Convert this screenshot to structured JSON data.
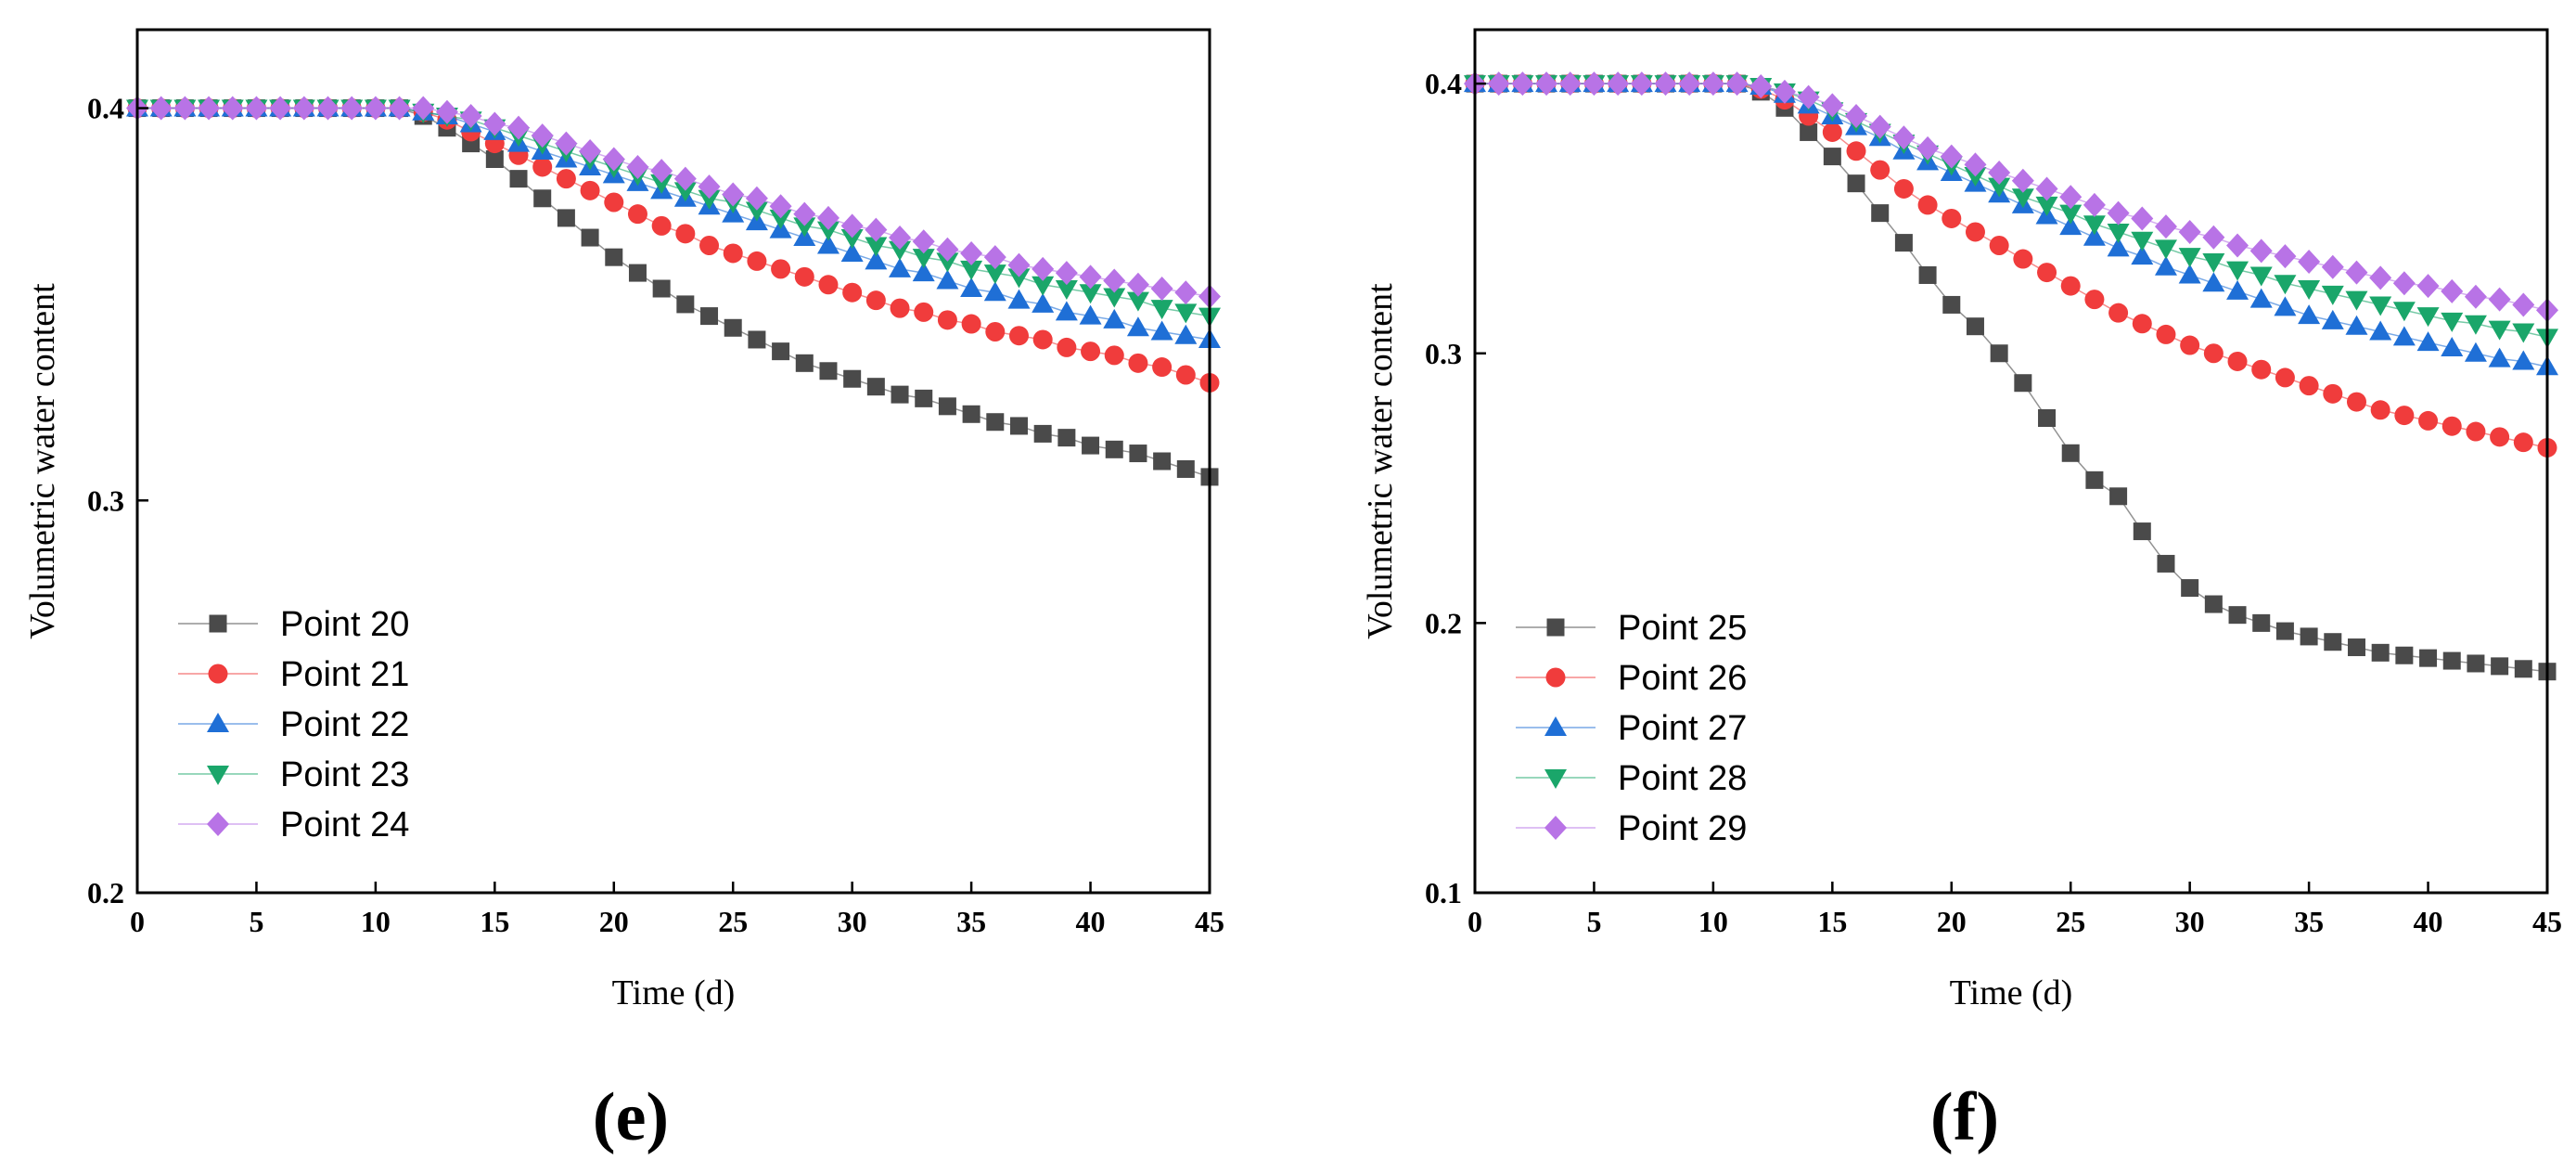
{
  "chart_data": [
    {
      "type": "line",
      "panel_label": "(e)",
      "xlabel": "Time (d)",
      "ylabel": "Volumetric water content",
      "xlim": [
        0,
        45
      ],
      "ylim": [
        0.2,
        0.42
      ],
      "xticks": [
        0,
        5,
        10,
        15,
        20,
        25,
        30,
        35,
        40,
        45
      ],
      "yticks": [
        0.2,
        0.3,
        0.4
      ],
      "ytick_labels": [
        "0.2",
        "0.3",
        "0.4"
      ],
      "legend_position": "bottom-left",
      "x": [
        0,
        1,
        2,
        3,
        4,
        5,
        6,
        7,
        8,
        9,
        10,
        11,
        12,
        13,
        14,
        15,
        16,
        17,
        18,
        19,
        20,
        21,
        22,
        23,
        24,
        25,
        26,
        27,
        28,
        29,
        30,
        31,
        32,
        33,
        34,
        35,
        36,
        37,
        38,
        39,
        40,
        41,
        42,
        43,
        44,
        45
      ],
      "series": [
        {
          "name": "Point 20",
          "color": "#4a4a4a",
          "marker": "square",
          "values": [
            0.4,
            0.4,
            0.4,
            0.4,
            0.4,
            0.4,
            0.4,
            0.4,
            0.4,
            0.4,
            0.4,
            0.4,
            0.398,
            0.395,
            0.391,
            0.387,
            0.382,
            0.377,
            0.372,
            0.367,
            0.362,
            0.358,
            0.354,
            0.35,
            0.347,
            0.344,
            0.341,
            0.338,
            0.335,
            0.333,
            0.331,
            0.329,
            0.327,
            0.326,
            0.324,
            0.322,
            0.32,
            0.319,
            0.317,
            0.316,
            0.314,
            0.313,
            0.312,
            0.31,
            0.308,
            0.306
          ]
        },
        {
          "name": "Point 21",
          "color": "#f03c3c",
          "marker": "circle",
          "values": [
            0.4,
            0.4,
            0.4,
            0.4,
            0.4,
            0.4,
            0.4,
            0.4,
            0.4,
            0.4,
            0.4,
            0.4,
            0.399,
            0.397,
            0.394,
            0.391,
            0.388,
            0.385,
            0.382,
            0.379,
            0.376,
            0.373,
            0.37,
            0.368,
            0.365,
            0.363,
            0.361,
            0.359,
            0.357,
            0.355,
            0.353,
            0.351,
            0.349,
            0.348,
            0.346,
            0.345,
            0.343,
            0.342,
            0.341,
            0.339,
            0.338,
            0.337,
            0.335,
            0.334,
            0.332,
            0.33
          ]
        },
        {
          "name": "Point 22",
          "color": "#1f6fd6",
          "marker": "triangle-up",
          "values": [
            0.4,
            0.4,
            0.4,
            0.4,
            0.4,
            0.4,
            0.4,
            0.4,
            0.4,
            0.4,
            0.4,
            0.4,
            0.399,
            0.398,
            0.396,
            0.394,
            0.391,
            0.389,
            0.387,
            0.385,
            0.383,
            0.381,
            0.379,
            0.377,
            0.375,
            0.373,
            0.371,
            0.369,
            0.367,
            0.365,
            0.363,
            0.361,
            0.359,
            0.358,
            0.356,
            0.354,
            0.353,
            0.351,
            0.35,
            0.348,
            0.347,
            0.346,
            0.344,
            0.343,
            0.342,
            0.341
          ]
        },
        {
          "name": "Point 23",
          "color": "#1aa66a",
          "marker": "triangle-down",
          "values": [
            0.4,
            0.4,
            0.4,
            0.4,
            0.4,
            0.4,
            0.4,
            0.4,
            0.4,
            0.4,
            0.4,
            0.4,
            0.399,
            0.398,
            0.397,
            0.395,
            0.393,
            0.391,
            0.389,
            0.387,
            0.385,
            0.383,
            0.381,
            0.379,
            0.377,
            0.376,
            0.374,
            0.372,
            0.37,
            0.369,
            0.367,
            0.365,
            0.364,
            0.362,
            0.361,
            0.359,
            0.358,
            0.357,
            0.355,
            0.354,
            0.353,
            0.352,
            0.351,
            0.349,
            0.348,
            0.347
          ]
        },
        {
          "name": "Point 24",
          "color": "#b873e6",
          "marker": "diamond",
          "values": [
            0.4,
            0.4,
            0.4,
            0.4,
            0.4,
            0.4,
            0.4,
            0.4,
            0.4,
            0.4,
            0.4,
            0.4,
            0.4,
            0.399,
            0.398,
            0.396,
            0.395,
            0.393,
            0.391,
            0.389,
            0.387,
            0.385,
            0.384,
            0.382,
            0.38,
            0.378,
            0.377,
            0.375,
            0.373,
            0.372,
            0.37,
            0.369,
            0.367,
            0.366,
            0.364,
            0.363,
            0.362,
            0.36,
            0.359,
            0.358,
            0.357,
            0.356,
            0.355,
            0.354,
            0.353,
            0.352
          ]
        }
      ]
    },
    {
      "type": "line",
      "panel_label": "(f)",
      "xlabel": "Time (d)",
      "ylabel": "Volumetric water content",
      "xlim": [
        0,
        45
      ],
      "ylim": [
        0.1,
        0.42
      ],
      "xticks": [
        0,
        5,
        10,
        15,
        20,
        25,
        30,
        35,
        40,
        45
      ],
      "yticks": [
        0.1,
        0.2,
        0.3,
        0.4
      ],
      "ytick_labels": [
        "0.1",
        "0.2",
        "0.3",
        "0.4"
      ],
      "legend_position": "bottom-left",
      "x": [
        0,
        1,
        2,
        3,
        4,
        5,
        6,
        7,
        8,
        9,
        10,
        11,
        12,
        13,
        14,
        15,
        16,
        17,
        18,
        19,
        20,
        21,
        22,
        23,
        24,
        25,
        26,
        27,
        28,
        29,
        30,
        31,
        32,
        33,
        34,
        35,
        36,
        37,
        38,
        39,
        40,
        41,
        42,
        43,
        44,
        45
      ],
      "series": [
        {
          "name": "Point 25",
          "color": "#4a4a4a",
          "marker": "square",
          "values": [
            0.4,
            0.4,
            0.4,
            0.4,
            0.4,
            0.4,
            0.4,
            0.4,
            0.4,
            0.4,
            0.4,
            0.4,
            0.397,
            0.391,
            0.382,
            0.373,
            0.363,
            0.352,
            0.341,
            0.329,
            0.318,
            0.31,
            0.3,
            0.289,
            0.276,
            0.263,
            0.253,
            0.247,
            0.234,
            0.222,
            0.213,
            0.207,
            0.203,
            0.2,
            0.197,
            0.195,
            0.193,
            0.191,
            0.189,
            0.188,
            0.187,
            0.186,
            0.185,
            0.184,
            0.183,
            0.182
          ]
        },
        {
          "name": "Point 26",
          "color": "#f03c3c",
          "marker": "circle",
          "values": [
            0.4,
            0.4,
            0.4,
            0.4,
            0.4,
            0.4,
            0.4,
            0.4,
            0.4,
            0.4,
            0.4,
            0.4,
            0.398,
            0.394,
            0.388,
            0.382,
            0.375,
            0.368,
            0.361,
            0.355,
            0.35,
            0.345,
            0.34,
            0.335,
            0.33,
            0.325,
            0.32,
            0.315,
            0.311,
            0.307,
            0.303,
            0.3,
            0.297,
            0.294,
            0.291,
            0.288,
            0.285,
            0.282,
            0.279,
            0.277,
            0.275,
            0.273,
            0.271,
            0.269,
            0.267,
            0.265
          ]
        },
        {
          "name": "Point 27",
          "color": "#1f6fd6",
          "marker": "triangle-up",
          "values": [
            0.4,
            0.4,
            0.4,
            0.4,
            0.4,
            0.4,
            0.4,
            0.4,
            0.4,
            0.4,
            0.4,
            0.4,
            0.399,
            0.396,
            0.392,
            0.388,
            0.384,
            0.38,
            0.375,
            0.371,
            0.367,
            0.363,
            0.359,
            0.355,
            0.351,
            0.347,
            0.343,
            0.339,
            0.336,
            0.332,
            0.329,
            0.326,
            0.323,
            0.32,
            0.317,
            0.314,
            0.312,
            0.31,
            0.308,
            0.306,
            0.304,
            0.302,
            0.3,
            0.298,
            0.297,
            0.295
          ]
        },
        {
          "name": "Point 28",
          "color": "#1aa66a",
          "marker": "triangle-down",
          "values": [
            0.4,
            0.4,
            0.4,
            0.4,
            0.4,
            0.4,
            0.4,
            0.4,
            0.4,
            0.4,
            0.4,
            0.4,
            0.399,
            0.397,
            0.394,
            0.39,
            0.386,
            0.382,
            0.378,
            0.374,
            0.37,
            0.366,
            0.362,
            0.358,
            0.355,
            0.352,
            0.348,
            0.345,
            0.342,
            0.339,
            0.336,
            0.334,
            0.331,
            0.329,
            0.326,
            0.324,
            0.322,
            0.32,
            0.318,
            0.316,
            0.314,
            0.312,
            0.311,
            0.309,
            0.308,
            0.306
          ]
        },
        {
          "name": "Point 29",
          "color": "#b873e6",
          "marker": "diamond",
          "values": [
            0.4,
            0.4,
            0.4,
            0.4,
            0.4,
            0.4,
            0.4,
            0.4,
            0.4,
            0.4,
            0.4,
            0.4,
            0.399,
            0.397,
            0.395,
            0.392,
            0.388,
            0.384,
            0.38,
            0.376,
            0.373,
            0.37,
            0.367,
            0.364,
            0.361,
            0.358,
            0.355,
            0.352,
            0.35,
            0.347,
            0.345,
            0.343,
            0.34,
            0.338,
            0.336,
            0.334,
            0.332,
            0.33,
            0.328,
            0.326,
            0.325,
            0.323,
            0.321,
            0.32,
            0.318,
            0.316
          ]
        }
      ]
    }
  ]
}
